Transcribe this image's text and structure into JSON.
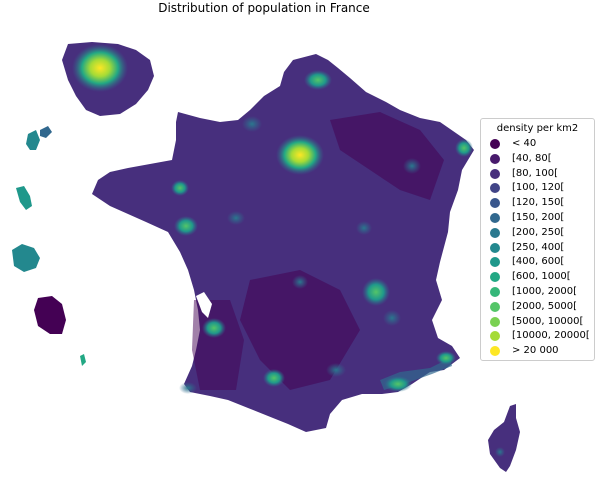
{
  "title": "Distribution of population in France",
  "legend": {
    "title": "density per km2",
    "items": [
      {
        "label": "< 40",
        "color": "#440154"
      },
      {
        "label": "[40, 80[",
        "color": "#481a6c"
      },
      {
        "label": "[80, 100[",
        "color": "#472f7d"
      },
      {
        "label": "[100, 120[",
        "color": "#414487"
      },
      {
        "label": "[120, 150[",
        "color": "#39568c"
      },
      {
        "label": "[150, 200[",
        "color": "#31688e"
      },
      {
        "label": "[200, 250[",
        "color": "#2a788e"
      },
      {
        "label": "[250, 400[",
        "color": "#23888e"
      },
      {
        "label": "[400, 600[",
        "color": "#1f988b"
      },
      {
        "label": "[600, 1000[",
        "color": "#22a884"
      },
      {
        "label": "[1000, 2000[",
        "color": "#35b779"
      },
      {
        "label": "[2000, 5000[",
        "color": "#54c568"
      },
      {
        "label": "[5000, 10000[",
        "color": "#7ad151"
      },
      {
        "label": "[10000, 20000[",
        "color": "#a5db36"
      },
      {
        "label": "> 20 000",
        "color": "#fde725"
      }
    ]
  },
  "colors": {
    "base": "#472f7d",
    "dark": "#440154",
    "hot": "#fde725",
    "mid": "#22a884"
  }
}
